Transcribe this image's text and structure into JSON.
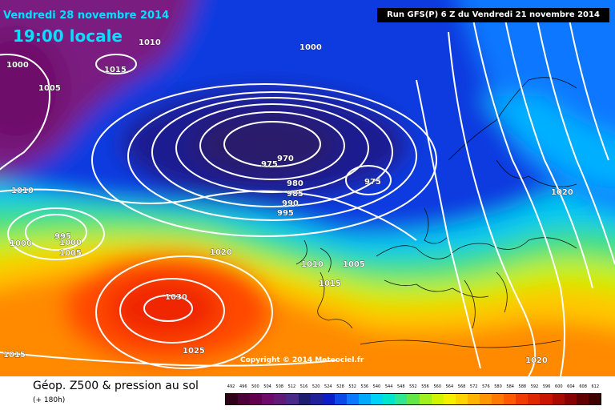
{
  "header": {
    "date": "Vendredi 28 novembre 2014",
    "time": "19:00 locale",
    "run_info": "Run GFS(P) 6 Z du Vendredi 21 novembre 2014"
  },
  "copyright": "Copyright © 2014 Meteociel.fr",
  "footer": {
    "title": "Géop. Z500 & pression au sol",
    "subtitle": "(+ 180h)"
  },
  "legend": {
    "values": [
      "492",
      "496",
      "500",
      "504",
      "508",
      "512",
      "516",
      "520",
      "524",
      "528",
      "532",
      "536",
      "540",
      "544",
      "548",
      "552",
      "556",
      "560",
      "564",
      "568",
      "572",
      "576",
      "580",
      "584",
      "588",
      "592",
      "596",
      "600",
      "604",
      "608",
      "612"
    ],
    "colors": [
      "#300018",
      "#4a0038",
      "#62004e",
      "#6e0a6a",
      "#601a78",
      "#4a2a88",
      "#1e1e6e",
      "#20209a",
      "#0c1cc8",
      "#0a4ae8",
      "#0a78ff",
      "#00a8ff",
      "#00d2f8",
      "#00e6cc",
      "#30e690",
      "#64e648",
      "#a0f020",
      "#d2f400",
      "#f4f000",
      "#ffd400",
      "#ffb400",
      "#ff9600",
      "#ff7800",
      "#ff5a00",
      "#f03c00",
      "#e02800",
      "#c81400",
      "#a80a00",
      "#880000",
      "#600000",
      "#400000"
    ]
  },
  "pressure_labels": [
    {
      "text": "1010",
      "type": "isobar"
    },
    {
      "text": "1015",
      "type": "isobar"
    },
    {
      "text": "1000",
      "type": "isobar"
    },
    {
      "text": "1005",
      "type": "isobar"
    },
    {
      "text": "1000",
      "type": "isobar"
    },
    {
      "text": "970",
      "type": "isobar"
    },
    {
      "text": "975",
      "type": "isobar"
    },
    {
      "text": "980",
      "type": "isobar"
    },
    {
      "text": "985",
      "type": "isobar"
    },
    {
      "text": "990",
      "type": "isobar"
    },
    {
      "text": "995",
      "type": "isobar"
    },
    {
      "text": "975",
      "type": "isobar"
    },
    {
      "text": "1010",
      "type": "isobar"
    },
    {
      "text": "995",
      "type": "isobar"
    },
    {
      "text": "1000",
      "type": "isobar"
    },
    {
      "text": "1000",
      "type": "isobar"
    },
    {
      "text": "1005",
      "type": "isobar"
    },
    {
      "text": "1020",
      "type": "isobar"
    },
    {
      "text": "1010",
      "type": "isobar"
    },
    {
      "text": "1005",
      "type": "isobar"
    },
    {
      "text": "1015",
      "type": "isobar"
    },
    {
      "text": "1030",
      "type": "isobar"
    },
    {
      "text": "1025",
      "type": "isobar"
    },
    {
      "text": "1020",
      "type": "isobar"
    },
    {
      "text": "1020",
      "type": "isobar"
    },
    {
      "text": "1015",
      "type": "isobar"
    }
  ]
}
